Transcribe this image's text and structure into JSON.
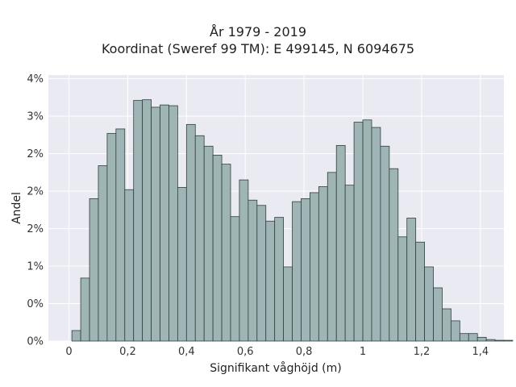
{
  "chart_data": {
    "type": "bar",
    "title": "År 1979 - 2019",
    "subtitle": "Koordinat (Sweref 99 TM): E 499145, N 6094675",
    "xlabel": "Signifikant våghöjd (m)",
    "ylabel": "Andel",
    "xlim": [
      -0.07,
      1.48
    ],
    "ylim": [
      0,
      3.55
    ],
    "grid": true,
    "x_ticks": [
      {
        "value": 0,
        "label": "0"
      },
      {
        "value": 0.2,
        "label": "0,2"
      },
      {
        "value": 0.4,
        "label": "0,4"
      },
      {
        "value": 0.6,
        "label": "0,6"
      },
      {
        "value": 0.8,
        "label": "0,8"
      },
      {
        "value": 1.0,
        "label": "1"
      },
      {
        "value": 1.2,
        "label": "1,2"
      },
      {
        "value": 1.4,
        "label": "1,4"
      }
    ],
    "y_ticks": [
      {
        "value": 0,
        "label": "0%"
      },
      {
        "value": 0.5,
        "label": "0%"
      },
      {
        "value": 1.0,
        "label": "1%"
      },
      {
        "value": 1.5,
        "label": "2%"
      },
      {
        "value": 2.0,
        "label": "2%"
      },
      {
        "value": 2.5,
        "label": "2%"
      },
      {
        "value": 3.0,
        "label": "3%"
      },
      {
        "value": 3.5,
        "label": "4%"
      }
    ],
    "bin_start": 0.01,
    "bin_width": 0.03,
    "values": [
      0.14,
      0.84,
      1.9,
      2.34,
      2.77,
      2.83,
      2.02,
      3.21,
      3.22,
      3.12,
      3.15,
      3.14,
      2.05,
      2.89,
      2.74,
      2.6,
      2.48,
      2.36,
      1.66,
      2.15,
      1.88,
      1.81,
      1.6,
      1.65,
      0.99,
      1.86,
      1.9,
      1.98,
      2.06,
      2.25,
      2.61,
      2.08,
      2.92,
      2.95,
      2.85,
      2.6,
      2.3,
      1.39,
      1.64,
      1.32,
      0.99,
      0.71,
      0.43,
      0.27,
      0.1,
      0.1,
      0.05,
      0.02,
      0.01,
      0.01
    ],
    "bar_color": "#9fb5b5",
    "edge_color": "#2f3f3f",
    "background_color": "#eaeaf2"
  }
}
